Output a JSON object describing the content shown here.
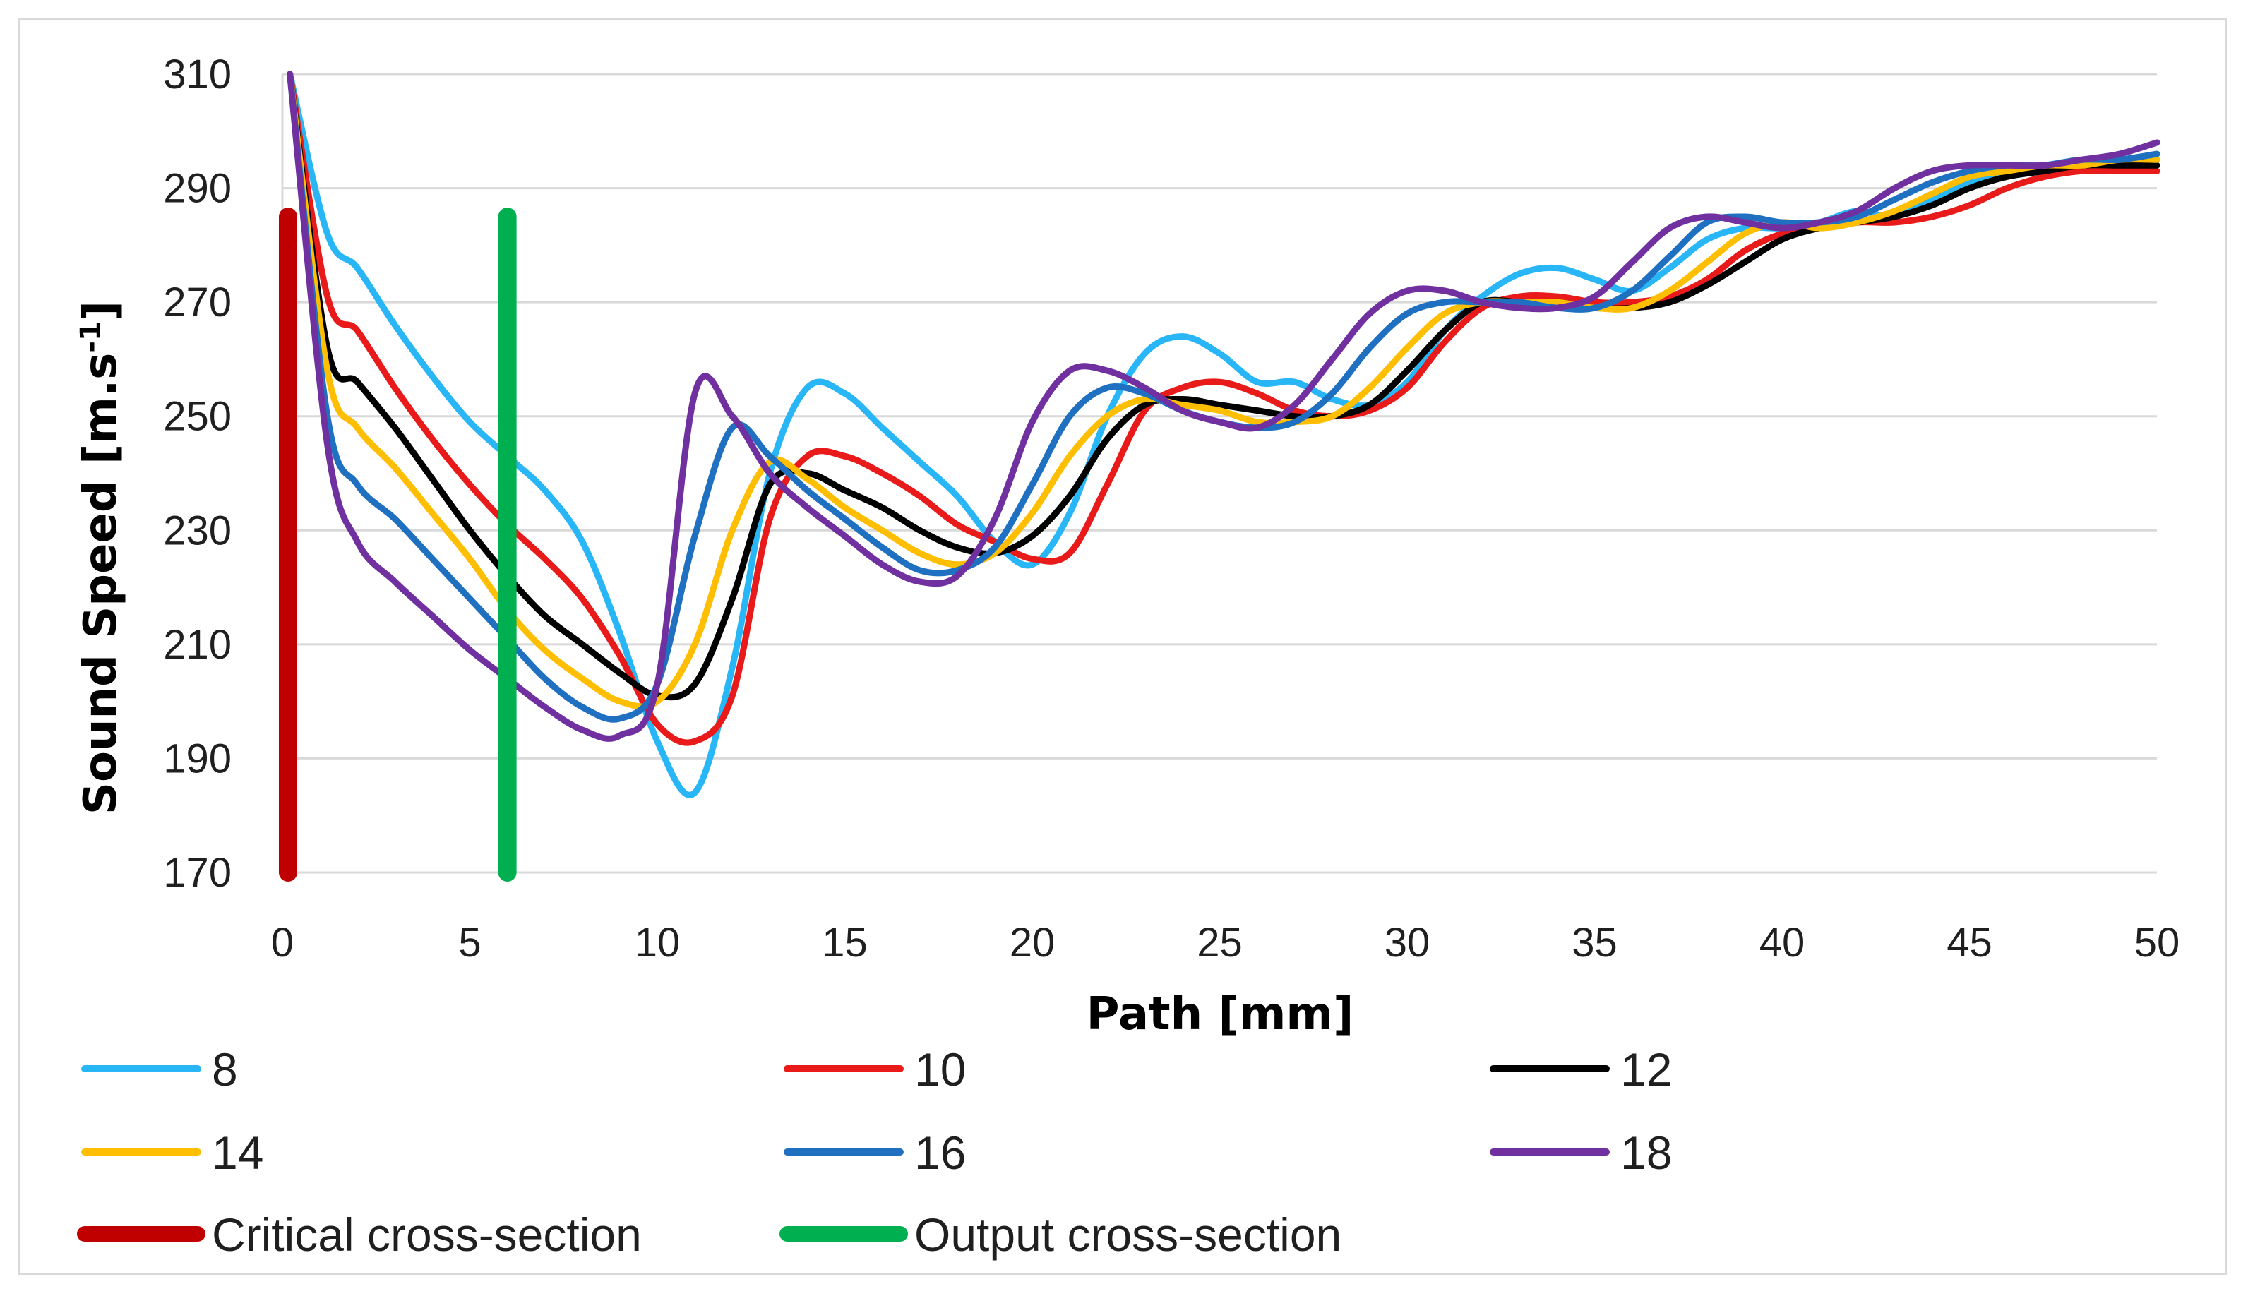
{
  "chart_data": {
    "type": "line",
    "xlabel": "Path  [mm]",
    "ylabel_main": "Sound Speed [m.s",
    "ylabel_sup": "-1",
    "ylabel_end": "]",
    "xlim": [
      0,
      50
    ],
    "ylim": [
      170,
      310
    ],
    "x_ticks": [
      "0",
      "5",
      "10",
      "15",
      "20",
      "25",
      "30",
      "35",
      "40",
      "45",
      "50"
    ],
    "y_ticks": [
      "170",
      "190",
      "210",
      "230",
      "250",
      "270",
      "290",
      "310"
    ],
    "grid": "horizontal",
    "x": [
      0.2,
      1.2,
      2,
      3,
      4,
      5,
      6,
      7,
      8,
      9,
      10,
      11,
      12,
      13,
      14,
      15,
      16,
      17,
      18,
      19,
      20,
      21,
      22,
      23,
      24,
      25,
      26,
      27,
      28,
      29,
      30,
      31,
      32,
      33,
      34,
      35,
      36,
      37,
      38,
      39,
      40,
      41,
      42,
      43,
      44,
      45,
      46,
      47,
      48,
      49,
      50
    ],
    "series": [
      {
        "name": "8",
        "color": "#29b6f6",
        "values": [
          310,
          282,
          276,
          266,
          257,
          249,
          243,
          237,
          228,
          212,
          193,
          184,
          206,
          240,
          255,
          254,
          248,
          242,
          236,
          228,
          224,
          233,
          250,
          261,
          264,
          261,
          256,
          256,
          253,
          252,
          256,
          265,
          271,
          275,
          276,
          274,
          272,
          276,
          281,
          283,
          283,
          284,
          286,
          285,
          288,
          291,
          293,
          294,
          295,
          295,
          296
        ]
      },
      {
        "name": "10",
        "color": "#e81a1a",
        "values": [
          310,
          271,
          265,
          255,
          246,
          238,
          231,
          225,
          218,
          208,
          196,
          193,
          201,
          232,
          243,
          243,
          240,
          236,
          231,
          228,
          225,
          226,
          238,
          251,
          255,
          256,
          254,
          251,
          250,
          251,
          255,
          263,
          269,
          271,
          271,
          270,
          270,
          271,
          274,
          279,
          282,
          283,
          284,
          284,
          285,
          287,
          290,
          292,
          293,
          293,
          293
        ]
      },
      {
        "name": "12",
        "color": "#000000",
        "values": [
          310,
          262,
          256,
          248,
          239,
          230,
          222,
          215,
          210,
          205,
          201,
          203,
          218,
          238,
          240,
          237,
          234,
          230,
          227,
          226,
          229,
          236,
          246,
          252,
          253,
          252,
          251,
          250,
          250,
          252,
          258,
          265,
          270,
          270,
          270,
          269,
          269,
          270,
          273,
          277,
          281,
          283,
          284,
          285,
          287,
          290,
          292,
          293,
          294,
          294,
          294
        ]
      },
      {
        "name": "14",
        "color": "#ffbf00",
        "values": [
          310,
          258,
          248,
          241,
          233,
          225,
          216,
          209,
          204,
          200,
          200,
          210,
          230,
          242,
          239,
          234,
          230,
          226,
          224,
          226,
          233,
          243,
          250,
          253,
          252,
          251,
          249,
          249,
          250,
          255,
          262,
          268,
          270,
          270,
          270,
          269,
          269,
          272,
          277,
          282,
          284,
          283,
          284,
          286,
          289,
          292,
          293,
          294,
          294,
          295,
          295
        ]
      },
      {
        "name": "16",
        "color": "#1f70c0",
        "values": [
          310,
          250,
          238,
          232,
          225,
          218,
          211,
          204,
          199,
          197,
          203,
          229,
          248,
          243,
          237,
          232,
          227,
          223,
          223,
          227,
          238,
          250,
          255,
          254,
          251,
          249,
          248,
          249,
          254,
          262,
          268,
          270,
          270,
          270,
          269,
          269,
          272,
          278,
          284,
          285,
          284,
          284,
          285,
          288,
          291,
          293,
          294,
          294,
          295,
          295,
          296
        ]
      },
      {
        "name": "18",
        "color": "#7030a0",
        "values": [
          310,
          245,
          228,
          221,
          215,
          209,
          204,
          199,
          195,
          194,
          203,
          254,
          250,
          240,
          234,
          229,
          224,
          221,
          222,
          232,
          249,
          258,
          258,
          255,
          251,
          249,
          248,
          252,
          260,
          268,
          272,
          272,
          270,
          269,
          269,
          271,
          277,
          283,
          285,
          284,
          283,
          284,
          286,
          290,
          293,
          294,
          294,
          294,
          295,
          296,
          298
        ]
      }
    ],
    "markers": [
      {
        "name": "Critical cross-section",
        "color": "#c00000",
        "x": 0.15,
        "y_from": 170,
        "y_to": 285
      },
      {
        "name": "Output cross-section",
        "color": "#00b050",
        "x": 6,
        "y_from": 170,
        "y_to": 285
      }
    ],
    "legend": "bottom"
  }
}
